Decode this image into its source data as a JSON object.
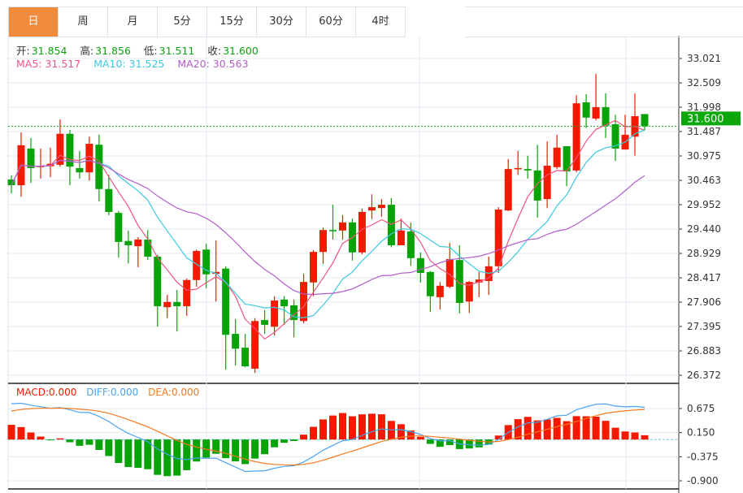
{
  "tabs": [
    {
      "label": "日",
      "active": true
    },
    {
      "label": "周"
    },
    {
      "label": "月"
    },
    {
      "label": "5分"
    },
    {
      "label": "15分"
    },
    {
      "label": "30分"
    },
    {
      "label": "60分"
    },
    {
      "label": "4时"
    }
  ],
  "ohlc_info": {
    "open_label": "开:",
    "open": "31.854",
    "high_label": "高:",
    "high": "31.856",
    "low_label": "低:",
    "low": "31.511",
    "close_label": "收:",
    "close": "31.600"
  },
  "ma_info": {
    "ma5": "MA5: 31.517",
    "ma10": "MA10: 31.525",
    "ma20": "MA20: 30.563"
  },
  "macd_info": {
    "macd": "MACD:0.000",
    "diff": "DIFF:0.000",
    "dea": "DEA:0.000"
  },
  "current_price": "31.600",
  "colors": {
    "up": "#f21a00",
    "down": "#08a308",
    "ma5": "#f0557f",
    "ma10": "#3ec8e0",
    "ma20": "#b45ccc",
    "diff": "#4aa3f0",
    "dea": "#f57a1f",
    "tab_active": "#f28b3c"
  },
  "chart_data": {
    "type": "candlestick",
    "price_axis": {
      "min": 26.372,
      "max": 33.021,
      "ticks": [
        "33.021",
        "32.509",
        "31.998",
        "31.487",
        "30.975",
        "30.463",
        "29.952",
        "29.440",
        "28.929",
        "28.417",
        "27.906",
        "27.395",
        "26.883",
        "26.372"
      ]
    },
    "macd_axis": {
      "min": -0.9,
      "max": 0.675,
      "ticks": [
        "0.675",
        "0.150",
        "-0.375",
        "-0.900"
      ]
    },
    "macd_init": {
      "diff": 0.78,
      "dea": 0.62
    },
    "candles": [
      [
        30.48,
        30.57,
        30.19,
        30.36
      ],
      [
        30.36,
        31.47,
        30.12,
        31.2
      ],
      [
        31.13,
        31.35,
        30.41,
        30.72
      ],
      [
        30.74,
        31.13,
        30.5,
        30.77
      ],
      [
        30.76,
        31.15,
        30.53,
        30.81
      ],
      [
        30.79,
        31.74,
        30.75,
        31.44
      ],
      [
        31.44,
        31.52,
        30.36,
        30.75
      ],
      [
        30.72,
        31.08,
        30.5,
        30.63
      ],
      [
        30.63,
        31.38,
        30.46,
        31.23
      ],
      [
        31.21,
        31.42,
        30.02,
        30.28
      ],
      [
        30.28,
        30.58,
        29.73,
        29.8
      ],
      [
        29.78,
        29.82,
        28.84,
        29.17
      ],
      [
        29.19,
        29.41,
        28.72,
        29.1
      ],
      [
        29.08,
        29.27,
        28.64,
        29.22
      ],
      [
        29.22,
        29.42,
        28.79,
        28.86
      ],
      [
        28.86,
        28.9,
        27.39,
        27.82
      ],
      [
        27.8,
        28.06,
        27.57,
        27.91
      ],
      [
        27.91,
        28.16,
        27.29,
        27.82
      ],
      [
        27.82,
        28.4,
        27.62,
        28.37
      ],
      [
        28.37,
        29.01,
        28.23,
        28.98
      ],
      [
        29.01,
        29.13,
        28.2,
        28.49
      ],
      [
        28.5,
        29.2,
        27.92,
        28.54
      ],
      [
        28.61,
        28.66,
        26.49,
        27.22
      ],
      [
        27.24,
        27.55,
        26.58,
        26.93
      ],
      [
        26.95,
        27.24,
        26.54,
        26.56
      ],
      [
        26.51,
        27.57,
        26.42,
        27.51
      ],
      [
        27.53,
        27.74,
        27.24,
        27.43
      ],
      [
        27.39,
        28.03,
        27.21,
        27.94
      ],
      [
        27.96,
        28.03,
        27.43,
        27.82
      ],
      [
        27.84,
        27.96,
        27.17,
        27.53
      ],
      [
        27.51,
        28.5,
        27.46,
        28.33
      ],
      [
        28.32,
        29.0,
        28.03,
        28.96
      ],
      [
        28.96,
        29.47,
        28.71,
        29.42
      ],
      [
        29.42,
        29.95,
        29.22,
        29.41
      ],
      [
        29.41,
        29.73,
        29.22,
        29.58
      ],
      [
        29.58,
        29.66,
        28.78,
        28.95
      ],
      [
        28.95,
        29.87,
        28.91,
        29.8
      ],
      [
        29.83,
        30.17,
        29.65,
        29.9
      ],
      [
        29.88,
        30.07,
        29.7,
        29.95
      ],
      [
        29.95,
        30.09,
        29.06,
        29.1
      ],
      [
        29.1,
        29.66,
        29.1,
        29.41
      ],
      [
        29.39,
        29.58,
        28.67,
        28.83
      ],
      [
        28.83,
        28.95,
        28.32,
        28.52
      ],
      [
        28.54,
        28.56,
        27.7,
        28.03
      ],
      [
        28.01,
        28.33,
        27.75,
        28.25
      ],
      [
        28.23,
        29.15,
        28.2,
        28.81
      ],
      [
        28.79,
        29.1,
        27.67,
        27.89
      ],
      [
        27.92,
        28.35,
        27.68,
        28.33
      ],
      [
        28.32,
        28.54,
        28.01,
        28.38
      ],
      [
        28.35,
        28.86,
        28.06,
        28.66
      ],
      [
        28.66,
        29.9,
        28.52,
        29.85
      ],
      [
        29.83,
        30.91,
        29.82,
        30.7
      ],
      [
        30.7,
        31.08,
        30.58,
        30.72
      ],
      [
        30.7,
        30.98,
        30.5,
        30.67
      ],
      [
        30.67,
        31.21,
        29.68,
        30.04
      ],
      [
        30.07,
        31.28,
        29.88,
        30.77
      ],
      [
        30.74,
        31.42,
        30.7,
        31.15
      ],
      [
        31.18,
        31.18,
        30.34,
        30.65
      ],
      [
        30.67,
        32.25,
        30.63,
        32.08
      ],
      [
        32.1,
        32.27,
        31.56,
        31.78
      ],
      [
        31.76,
        32.7,
        31.72,
        32.0
      ],
      [
        32.0,
        32.29,
        31.35,
        31.61
      ],
      [
        31.64,
        31.84,
        30.87,
        31.13
      ],
      [
        31.11,
        31.84,
        31.11,
        31.42
      ],
      [
        31.38,
        32.29,
        30.98,
        31.81
      ],
      [
        31.854,
        31.856,
        31.511,
        31.6
      ]
    ]
  }
}
